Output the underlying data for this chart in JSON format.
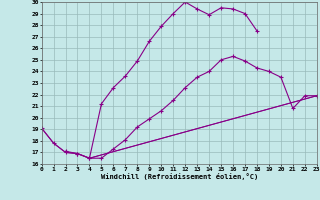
{
  "xlabel": "Windchill (Refroidissement éolien,°C)",
  "xlim": [
    0,
    23
  ],
  "ylim": [
    16,
    30
  ],
  "xticks": [
    0,
    1,
    2,
    3,
    4,
    5,
    6,
    7,
    8,
    9,
    10,
    11,
    12,
    13,
    14,
    15,
    16,
    17,
    18,
    19,
    20,
    21,
    22,
    23
  ],
  "yticks": [
    16,
    17,
    18,
    19,
    20,
    21,
    22,
    23,
    24,
    25,
    26,
    27,
    28,
    29,
    30
  ],
  "bg_color": "#c5e8e8",
  "line_color": "#880088",
  "grid_color": "#99bbbb",
  "curve1_x": [
    0,
    1,
    2,
    3,
    4,
    5,
    6,
    7,
    8,
    9,
    10,
    11,
    12,
    13,
    14,
    15,
    16,
    17,
    18
  ],
  "curve1_y": [
    19.1,
    17.8,
    17.0,
    16.9,
    16.5,
    21.2,
    22.6,
    23.6,
    24.9,
    26.6,
    27.9,
    29.0,
    30.0,
    29.4,
    28.9,
    29.5,
    29.4,
    29.0,
    27.5
  ],
  "curve2_x": [
    2,
    3,
    4,
    5,
    6,
    7,
    8,
    9,
    10,
    11,
    12,
    13,
    14,
    15,
    16,
    17,
    18,
    19,
    20,
    21,
    22,
    23
  ],
  "curve2_y": [
    17.1,
    16.9,
    16.5,
    16.5,
    17.3,
    18.1,
    19.2,
    19.9,
    20.6,
    21.5,
    22.6,
    23.5,
    24.0,
    25.0,
    25.3,
    24.9,
    24.3,
    24.0,
    23.5,
    20.8,
    21.9,
    21.9
  ],
  "line3_x": [
    0,
    1,
    2,
    3,
    4,
    23
  ],
  "line3_y": [
    19.1,
    17.8,
    17.0,
    16.9,
    16.5,
    21.9
  ],
  "line4_x": [
    4,
    23
  ],
  "line4_y": [
    16.5,
    21.9
  ]
}
